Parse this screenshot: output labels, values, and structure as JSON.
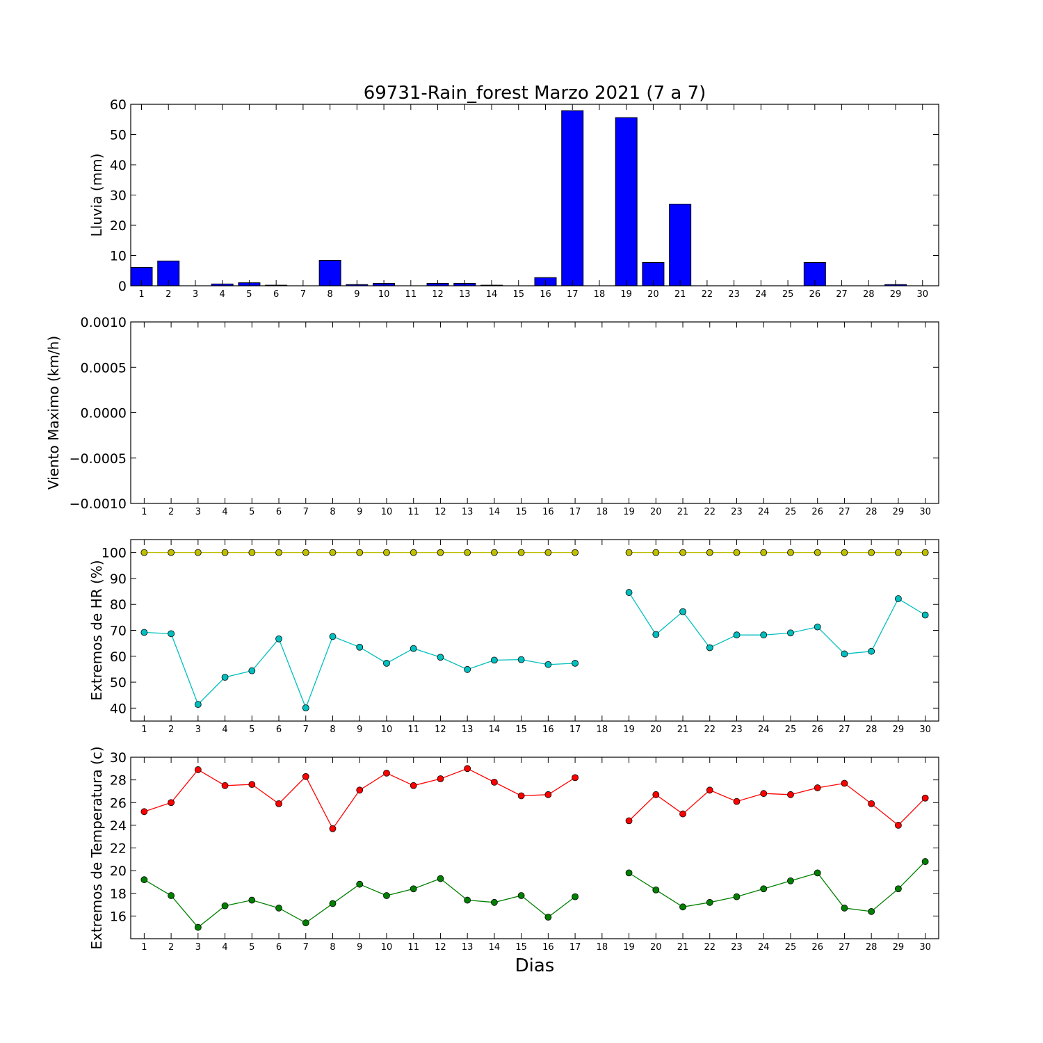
{
  "chart_data": {
    "title": "69731-Rain_forest Marzo 2021  (7 a 7)",
    "xlabel": "Dias",
    "x_ticks": [
      1,
      2,
      3,
      4,
      5,
      6,
      7,
      8,
      9,
      10,
      11,
      12,
      13,
      14,
      15,
      16,
      17,
      18,
      19,
      20,
      21,
      22,
      23,
      24,
      25,
      26,
      27,
      28,
      29,
      30
    ],
    "panels": [
      {
        "type": "bar",
        "ylabel": "Lluvia (mm)",
        "ylim": [
          0,
          60
        ],
        "yticks": [
          0,
          10,
          20,
          30,
          40,
          50,
          60
        ],
        "ytick_labels": [
          "0",
          "10",
          "20",
          "30",
          "40",
          "50",
          "60"
        ],
        "xlim": [
          0.6,
          30.6
        ],
        "bar_color": "#0000ff",
        "series": [
          {
            "values": [
              6.1,
              8.2,
              0,
              0.6,
              1.0,
              0.2,
              0,
              8.4,
              0.4,
              0.8,
              0,
              0.8,
              0.8,
              0.2,
              0,
              2.7,
              57.9,
              0,
              55.6,
              7.7,
              27.0,
              0,
              0,
              0,
              0,
              7.7,
              0,
              0,
              0.4,
              0
            ]
          }
        ]
      },
      {
        "type": "line",
        "ylabel": "Viento Maximo (km/h)",
        "ylim": [
          -0.001,
          0.001
        ],
        "yticks": [
          -0.001,
          -0.0005,
          0.0,
          0.0005,
          0.001
        ],
        "ytick_labels": [
          "−0.0010",
          "−0.0005",
          "0.0000",
          "0.0005",
          "0.0010"
        ],
        "xlim": [
          0.5,
          30.5
        ],
        "series": []
      },
      {
        "type": "line",
        "ylabel": "Extremos de HR (%)",
        "ylim": [
          35,
          105
        ],
        "yticks": [
          40,
          50,
          60,
          70,
          80,
          90,
          100
        ],
        "ytick_labels": [
          "40",
          "50",
          "60",
          "70",
          "80",
          "90",
          "100"
        ],
        "xlim": [
          0.5,
          30.5
        ],
        "series": [
          {
            "color": "#bfbf00",
            "values": [
              100,
              100,
              100,
              100,
              100,
              100,
              100,
              100,
              100,
              100,
              100,
              100,
              100,
              100,
              100,
              100,
              100,
              null,
              100,
              100,
              100,
              100,
              100,
              100,
              100,
              100,
              100,
              100,
              100,
              100
            ]
          },
          {
            "color": "#00bfbf",
            "values": [
              69.2,
              68.7,
              41.4,
              51.9,
              54.4,
              66.7,
              40.1,
              67.6,
              63.5,
              57.3,
              63.0,
              59.6,
              54.9,
              58.5,
              58.7,
              56.8,
              57.3,
              null,
              84.6,
              68.4,
              77.2,
              63.3,
              68.2,
              68.2,
              69.0,
              71.3,
              60.9,
              61.9,
              82.2,
              75.9
            ]
          }
        ]
      },
      {
        "type": "line",
        "ylabel": "Extremos de Temperatura (c)",
        "ylim": [
          14,
          30
        ],
        "yticks": [
          16,
          18,
          20,
          22,
          24,
          26,
          28,
          30
        ],
        "ytick_labels": [
          "16",
          "18",
          "20",
          "22",
          "24",
          "26",
          "28",
          "30"
        ],
        "xlim": [
          0.5,
          30.5
        ],
        "series": [
          {
            "color": "#ff0000",
            "values": [
              25.2,
              26.0,
              28.9,
              27.5,
              27.6,
              25.9,
              28.3,
              23.7,
              27.1,
              28.6,
              27.5,
              28.1,
              29.0,
              27.8,
              26.6,
              26.7,
              28.2,
              null,
              24.4,
              26.7,
              25.0,
              27.1,
              26.1,
              26.8,
              26.7,
              27.3,
              27.7,
              25.9,
              24.0,
              26.4
            ]
          },
          {
            "color": "#008000",
            "values": [
              19.2,
              17.8,
              15.0,
              16.9,
              17.4,
              16.7,
              15.4,
              17.1,
              18.8,
              17.8,
              18.4,
              19.3,
              17.4,
              17.2,
              17.8,
              15.9,
              17.7,
              null,
              19.8,
              18.3,
              16.8,
              17.2,
              17.7,
              18.4,
              19.1,
              19.8,
              16.7,
              16.4,
              18.4,
              20.8
            ]
          }
        ]
      }
    ]
  }
}
